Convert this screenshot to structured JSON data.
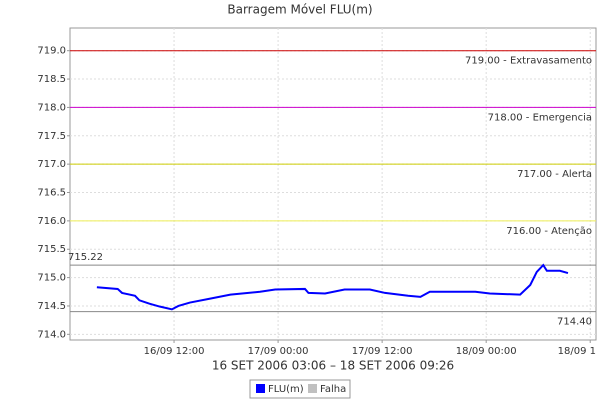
{
  "chart_data": {
    "type": "line",
    "title": "Barragem Móvel FLU(m)",
    "subtitle": "16 SET 2006 03:06 – 18 SET 2006 09:26",
    "x": [
      "16/09 03:06",
      "16/09 05:30",
      "16/09 06:00",
      "16/09 07:30",
      "16/09 08:00",
      "16/09 09:10",
      "16/09 10:20",
      "16/09 11:45",
      "16/09 12:30",
      "16/09 13:50",
      "16/09 16:10",
      "16/09 18:30",
      "16/09 21:55",
      "16/09 23:40",
      "17/09 03:06",
      "17/09 03:30",
      "17/09 05:25",
      "17/09 07:40",
      "17/09 10:35",
      "17/09 12:20",
      "17/09 15:00",
      "17/09 16:25",
      "17/09 17:30",
      "17/09 22:45",
      "18/09 00:25",
      "18/09 03:55",
      "18/09 05:05",
      "18/09 05:50",
      "18/09 06:35",
      "18/09 07:00",
      "18/09 08:30",
      "18/09 09:26"
    ],
    "series": [
      {
        "name": "FLU(m)",
        "color": "#0000ff",
        "values": [
          714.83,
          714.8,
          714.73,
          714.68,
          714.6,
          714.54,
          714.49,
          714.44,
          714.5,
          714.56,
          714.63,
          714.7,
          714.75,
          714.79,
          714.8,
          714.73,
          714.72,
          714.79,
          714.79,
          714.73,
          714.68,
          714.66,
          714.75,
          714.75,
          714.72,
          714.7,
          714.87,
          715.1,
          715.22,
          715.12,
          715.12,
          715.08
        ]
      },
      {
        "name": "Falha",
        "color": "#c0c0c0",
        "values": [
          null,
          null,
          null,
          null,
          null,
          null,
          null,
          null,
          null,
          null,
          null,
          null,
          null,
          null,
          null,
          null,
          null,
          null,
          null,
          null,
          null,
          null,
          null,
          null,
          null,
          null,
          null,
          null,
          null,
          null,
          null,
          null
        ]
      }
    ],
    "xlim": [
      "16/09 00:00",
      "18/09 12:40"
    ],
    "xticks": [
      "16/09 12:00",
      "17/09 00:00",
      "17/09 12:00",
      "18/09 00:00",
      {
        "value": "18/09 12:00",
        "label": "18/09 1"
      }
    ],
    "ylim": [
      713.9,
      719.4
    ],
    "yticks": [
      {
        "value": 714,
        "label": "714.0"
      },
      714.5,
      {
        "value": 715,
        "label": "715.0"
      },
      715.5,
      {
        "value": 716,
        "label": "716.0"
      },
      716.5,
      {
        "value": 717,
        "label": "717.0"
      },
      717.5,
      {
        "value": 718,
        "label": "718.0"
      },
      718.5,
      {
        "value": 719,
        "label": "719.0"
      }
    ],
    "grid": true,
    "reference_lines": [
      {
        "value": 719,
        "label": "719.00 - Extravasamento",
        "color": "#cc0000",
        "position": "right"
      },
      {
        "value": 718,
        "label": "718.00 - Emergencia",
        "color": "#cc00cc",
        "position": "right"
      },
      {
        "value": 717,
        "label": "717.00 - Alerta",
        "color": "#cccc00",
        "position": "right"
      },
      {
        "value": 716,
        "label": "716.00 - Atenção",
        "color": "#eeee55",
        "position": "right"
      },
      {
        "value": 715.22,
        "label": "715.22",
        "color": "#888888",
        "position": "left"
      },
      {
        "value": 714.4,
        "label": "714.40",
        "color": "#888888",
        "position": "right"
      }
    ]
  }
}
